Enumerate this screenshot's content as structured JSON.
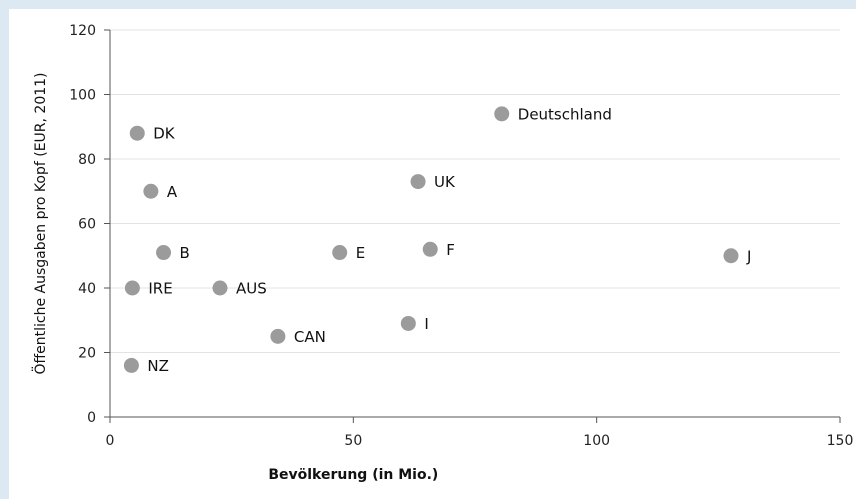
{
  "chart_data": {
    "type": "scatter",
    "title": "",
    "xlabel": "Bevölkerung (in Mio.)",
    "ylabel": "Öffentliche Ausgaben pro Kopf (EUR, 2011)",
    "xlim": [
      0,
      150
    ],
    "ylim": [
      0,
      120
    ],
    "xticks": [
      0,
      50,
      100,
      150
    ],
    "yticks": [
      0,
      20,
      40,
      60,
      80,
      100,
      120
    ],
    "grid": "horizontal",
    "marker_color": "#9b9b9b",
    "points": [
      {
        "label": "DK",
        "x": 5.6,
        "y": 88
      },
      {
        "label": "A",
        "x": 8.4,
        "y": 70
      },
      {
        "label": "B",
        "x": 11.0,
        "y": 51
      },
      {
        "label": "IRE",
        "x": 4.6,
        "y": 40
      },
      {
        "label": "NZ",
        "x": 4.4,
        "y": 16
      },
      {
        "label": "AUS",
        "x": 22.6,
        "y": 40
      },
      {
        "label": "CAN",
        "x": 34.5,
        "y": 25
      },
      {
        "label": "E",
        "x": 47.2,
        "y": 51
      },
      {
        "label": "I",
        "x": 61.3,
        "y": 29
      },
      {
        "label": "UK",
        "x": 63.3,
        "y": 73
      },
      {
        "label": "F",
        "x": 65.8,
        "y": 52
      },
      {
        "label": "Deutschland",
        "x": 80.5,
        "y": 94
      },
      {
        "label": "J",
        "x": 127.6,
        "y": 50
      }
    ]
  }
}
